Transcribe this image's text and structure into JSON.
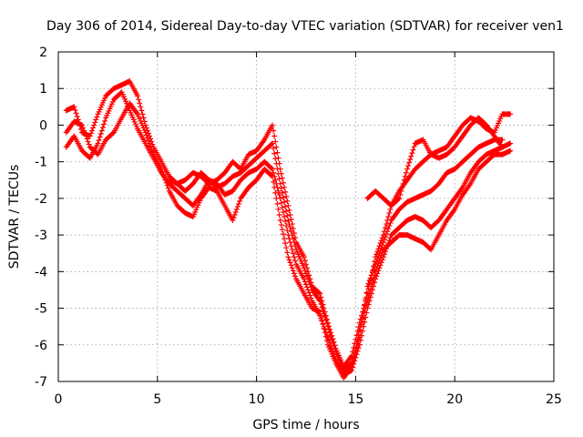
{
  "chart_data": {
    "type": "scatter",
    "title": "Day 306 of 2014, Sidereal Day-to-day VTEC variation (SDTVAR) for receiver ven1",
    "xlabel": "GPS time / hours",
    "ylabel": "SDTVAR / TECUs",
    "xlim": [
      0,
      25
    ],
    "ylim": [
      -7,
      2
    ],
    "xticks": [
      0,
      5,
      10,
      15,
      20,
      25
    ],
    "yticks": [
      2,
      1,
      0,
      -1,
      -2,
      -3,
      -4,
      -5,
      -6,
      -7
    ],
    "grid": true,
    "marker": "+",
    "color": "#ff0000",
    "series": [
      {
        "x": [
          0.4,
          0.8,
          1.2,
          1.6,
          2.0,
          2.4,
          2.8,
          3.2,
          3.6,
          4.0,
          4.4,
          4.8,
          5.2,
          5.6,
          6.0,
          6.4,
          6.8,
          7.2,
          7.6,
          8.0,
          8.4,
          8.8,
          9.2,
          9.6,
          10.0,
          10.4,
          10.8,
          11.2,
          11.6,
          12.0,
          12.4,
          12.8,
          13.2,
          13.6,
          14.0,
          14.4,
          14.8,
          15.2,
          15.6,
          16.0,
          16.4,
          16.8,
          17.2,
          17.6,
          18.0,
          18.4,
          18.8,
          19.2,
          19.6,
          20.0,
          20.4,
          20.8,
          21.2,
          21.6,
          22.0,
          22.4,
          22.8
        ],
        "y": [
          -0.6,
          -0.3,
          -0.7,
          -0.9,
          -0.5,
          0.2,
          0.7,
          0.9,
          0.4,
          -0.1,
          -0.5,
          -0.9,
          -1.3,
          -1.6,
          -1.8,
          -2.0,
          -2.2,
          -1.9,
          -1.5,
          -1.6,
          -1.9,
          -1.8,
          -1.5,
          -1.3,
          -1.2,
          -1.0,
          -1.2,
          -2.0,
          -3.0,
          -3.8,
          -4.2,
          -4.8,
          -5.2,
          -5.8,
          -6.4,
          -6.8,
          -6.7,
          -6.0,
          -5.0,
          -4.2,
          -3.6,
          -3.0,
          -2.8,
          -2.6,
          -2.5,
          -2.6,
          -2.8,
          -2.6,
          -2.3,
          -2.0,
          -1.7,
          -1.3,
          -1.0,
          -0.8,
          -0.7,
          -0.6,
          -0.5
        ]
      },
      {
        "x": [
          0.4,
          0.8,
          1.2,
          1.6,
          2.0,
          2.4,
          2.8,
          3.2,
          3.6,
          4.0,
          4.4,
          4.8,
          5.2,
          5.6,
          6.0,
          6.4,
          6.8,
          7.2,
          7.6,
          8.0,
          8.4,
          8.8,
          9.2,
          9.6,
          10.0,
          10.4,
          10.8,
          11.2,
          11.6,
          12.0,
          12.4,
          12.8,
          13.2,
          13.6,
          14.0,
          14.4,
          14.8,
          15.2,
          15.6,
          16.0,
          16.4,
          16.8,
          17.2,
          17.6,
          18.0,
          18.4,
          18.8,
          19.2,
          19.6,
          20.0,
          20.4,
          20.8,
          21.2,
          21.6,
          22.0,
          22.4,
          22.8
        ],
        "y": [
          0.4,
          0.5,
          -0.2,
          -0.3,
          0.3,
          0.8,
          1.0,
          1.1,
          1.2,
          0.8,
          0.0,
          -0.6,
          -1.0,
          -1.4,
          -1.6,
          -1.5,
          -1.3,
          -1.4,
          -1.6,
          -1.5,
          -1.3,
          -1.0,
          -1.2,
          -0.8,
          -0.7,
          -0.4,
          0.0,
          -1.2,
          -2.2,
          -3.2,
          -3.6,
          -4.4,
          -4.6,
          -5.4,
          -6.1,
          -6.6,
          -6.3,
          -5.4,
          -4.6,
          -3.6,
          -3.0,
          -2.2,
          -1.8,
          -1.5,
          -1.2,
          -1.0,
          -0.8,
          -0.7,
          -0.6,
          -0.3,
          0.0,
          0.2,
          0.1,
          -0.1,
          -0.2,
          0.3,
          0.3
        ]
      },
      {
        "x": [
          0.4,
          0.8,
          1.2,
          1.6,
          2.0,
          2.4,
          2.8,
          3.2,
          3.6,
          4.0,
          4.4,
          4.8,
          5.2,
          5.6,
          6.0,
          6.4,
          6.8,
          7.2,
          7.6,
          8.0,
          8.4,
          8.8,
          9.2,
          9.6,
          10.0,
          10.4,
          10.8,
          11.2,
          11.6,
          12.0,
          12.4,
          12.8,
          13.2,
          13.6,
          14.0,
          14.4,
          14.8,
          15.2,
          15.6,
          16.0,
          16.4,
          16.8,
          17.2,
          17.6,
          18.0,
          18.4,
          18.8,
          19.2,
          19.6,
          20.0,
          20.4,
          20.8,
          21.2,
          21.6,
          22.0,
          22.4,
          22.8
        ],
        "y": [
          -0.2,
          0.1,
          0.0,
          -0.6,
          -0.8,
          -0.4,
          -0.2,
          0.2,
          0.6,
          0.3,
          -0.2,
          -0.8,
          -1.2,
          -1.8,
          -2.2,
          -2.4,
          -2.5,
          -2.0,
          -1.7,
          -1.8,
          -2.2,
          -2.6,
          -2.0,
          -1.7,
          -1.5,
          -1.2,
          -1.4,
          -2.6,
          -3.6,
          -4.2,
          -4.6,
          -5.0,
          -5.1,
          -6.0,
          -6.5,
          -6.9,
          -6.6,
          -5.6,
          -4.8,
          -4.0,
          -3.4,
          -3.2,
          -3.0,
          -3.0,
          -3.1,
          -3.2,
          -3.4,
          -3.0,
          -2.6,
          -2.3,
          -1.9,
          -1.6,
          -1.2,
          -1.0,
          -0.8,
          -0.8,
          -0.7
        ]
      },
      {
        "x": [
          5.6,
          6.0,
          6.4,
          6.8,
          7.2,
          7.6,
          8.0,
          8.4,
          8.8,
          9.2,
          9.6,
          10.0,
          10.4,
          10.8,
          11.2,
          11.6,
          12.0,
          12.4,
          12.8,
          13.2,
          13.6,
          14.0,
          14.4,
          14.8,
          15.2,
          15.6,
          16.0,
          16.4,
          16.8,
          17.2,
          17.6,
          18.0,
          18.4,
          18.8,
          19.2,
          19.6,
          20.0,
          20.4,
          20.8,
          21.2,
          21.6,
          22.0,
          22.4
        ],
        "y": [
          -1.5,
          -1.6,
          -1.8,
          -1.6,
          -1.3,
          -1.5,
          -1.7,
          -1.6,
          -1.4,
          -1.3,
          -1.1,
          -0.9,
          -0.7,
          -0.5,
          -1.6,
          -2.6,
          -3.4,
          -3.9,
          -4.5,
          -4.8,
          -5.5,
          -6.2,
          -6.7,
          -6.5,
          -5.8,
          -4.4,
          -3.8,
          -3.2,
          -2.6,
          -2.3,
          -2.1,
          -2.0,
          -1.9,
          -1.8,
          -1.6,
          -1.3,
          -1.2,
          -1.0,
          -0.8,
          -0.6,
          -0.5,
          -0.4,
          -0.4
        ]
      },
      {
        "x": [
          15.6,
          16.0,
          16.4,
          16.8,
          17.2,
          17.6,
          18.0,
          18.4,
          18.8,
          19.2,
          19.6,
          20.0,
          20.4,
          20.8,
          21.2,
          21.6,
          22.0,
          22.4
        ],
        "y": [
          -2.0,
          -1.8,
          -2.0,
          -2.2,
          -2.0,
          -1.2,
          -0.5,
          -0.4,
          -0.8,
          -0.9,
          -0.8,
          -0.6,
          -0.3,
          0.0,
          0.2,
          0.0,
          -0.3,
          -0.6
        ]
      }
    ]
  }
}
